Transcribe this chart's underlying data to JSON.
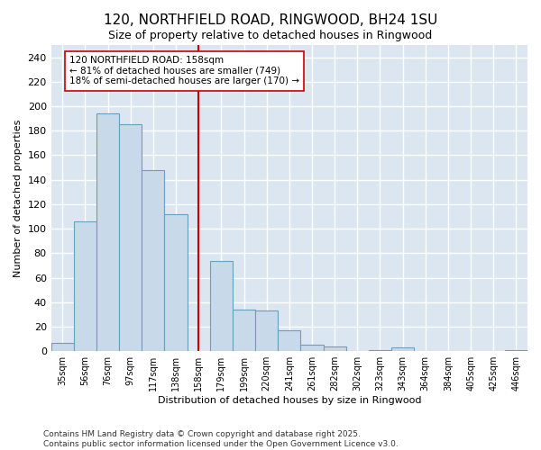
{
  "title": "120, NORTHFIELD ROAD, RINGWOOD, BH24 1SU",
  "subtitle": "Size of property relative to detached houses in Ringwood",
  "xlabel": "Distribution of detached houses by size in Ringwood",
  "ylabel": "Number of detached properties",
  "categories": [
    "35sqm",
    "56sqm",
    "76sqm",
    "97sqm",
    "117sqm",
    "138sqm",
    "158sqm",
    "179sqm",
    "199sqm",
    "220sqm",
    "241sqm",
    "261sqm",
    "282sqm",
    "302sqm",
    "323sqm",
    "343sqm",
    "364sqm",
    "384sqm",
    "405sqm",
    "425sqm",
    "446sqm"
  ],
  "values": [
    7,
    106,
    194,
    185,
    148,
    112,
    0,
    74,
    34,
    33,
    17,
    5,
    4,
    0,
    1,
    3,
    0,
    0,
    0,
    0,
    1
  ],
  "bar_color": "#c8d9ea",
  "bar_edge_color": "#6a9fc0",
  "vline_x_index": 6,
  "vline_color": "#cc0000",
  "annotation_text": "120 NORTHFIELD ROAD: 158sqm\n← 81% of detached houses are smaller (749)\n18% of semi-detached houses are larger (170) →",
  "annotation_box_facecolor": "white",
  "annotation_box_edgecolor": "#cc0000",
  "annotation_fontsize": 7.5,
  "ylim": [
    0,
    250
  ],
  "yticks": [
    0,
    20,
    40,
    60,
    80,
    100,
    120,
    140,
    160,
    180,
    200,
    220,
    240
  ],
  "fig_bg": "#ffffff",
  "plot_bg": "#dce6f0",
  "grid_color": "white",
  "footer": "Contains HM Land Registry data © Crown copyright and database right 2025.\nContains public sector information licensed under the Open Government Licence v3.0.",
  "footer_fontsize": 6.5,
  "title_fontsize": 11,
  "subtitle_fontsize": 9,
  "xlabel_fontsize": 8,
  "ylabel_fontsize": 8,
  "xtick_fontsize": 7,
  "ytick_fontsize": 8
}
